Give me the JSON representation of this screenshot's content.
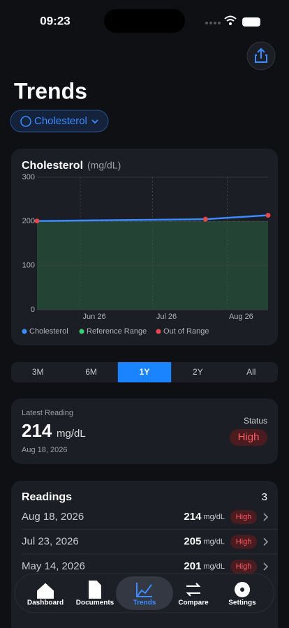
{
  "status_bar": {
    "time": "09:23"
  },
  "header": {
    "title": "Trends",
    "filter": "Cholesterol"
  },
  "chart_data": {
    "type": "line",
    "title": "Cholesterol",
    "unit": "(mg/dL)",
    "x": [
      "2026-05-14",
      "2026-07-23",
      "2026-08-18"
    ],
    "series": [
      {
        "name": "Cholesterol",
        "color": "#3a8cff",
        "values": [
          201,
          205,
          214
        ]
      }
    ],
    "reference_range": {
      "name": "Reference Range",
      "color": "#3ecf6e",
      "low": 0,
      "high": 200
    },
    "out_of_range": {
      "name": "Out of Range",
      "color": "#e5484d"
    },
    "xlim": [
      "2026-05-14",
      "2026-08-18"
    ],
    "xticks": [
      {
        "value": "2026-06-01",
        "label": "Jun 26"
      },
      {
        "value": "2026-07-01",
        "label": "Jul 26"
      },
      {
        "value": "2026-08-01",
        "label": "Aug 26"
      }
    ],
    "ylim": [
      0,
      300
    ],
    "yticks": [
      0,
      100,
      200,
      300
    ],
    "grid": true,
    "legend": "bottom"
  },
  "periods": {
    "options": [
      "3M",
      "6M",
      "1Y",
      "2Y",
      "All"
    ],
    "selected": 2
  },
  "latest": {
    "label": "Latest Reading",
    "value": 214,
    "unit": "mg/dL",
    "date": "Aug 18, 2026",
    "status_label": "Status",
    "status": "High"
  },
  "readings": {
    "title": "Readings",
    "count": 3,
    "items": [
      {
        "date": "Aug 18, 2026",
        "value": 214,
        "unit": "mg/dL",
        "status": "High"
      },
      {
        "date": "Jul 23, 2026",
        "value": 205,
        "unit": "mg/dL",
        "status": "High"
      },
      {
        "date": "May 14, 2026",
        "value": 201,
        "unit": "mg/dL",
        "status": "High"
      }
    ]
  },
  "tab_bar": {
    "items": [
      "Dashboard",
      "Documents",
      "Trends",
      "Compare",
      "Settings"
    ],
    "selected": 2
  }
}
